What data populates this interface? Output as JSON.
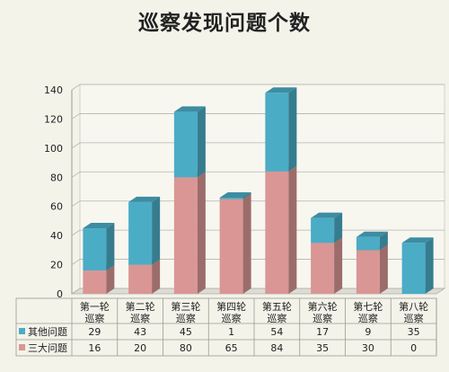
{
  "chart_data": {
    "type": "bar",
    "stacked": true,
    "title": "巡察发现问题个数",
    "categories": [
      "第一轮\n巡察",
      "第二轮\n巡察",
      "第三轮\n巡察",
      "第四轮\n巡察",
      "第五轮\n巡察",
      "第六轮\n巡察",
      "第七轮\n巡察",
      "第八轮\n巡察"
    ],
    "series": [
      {
        "name": "三大问题",
        "values": [
          16,
          20,
          80,
          65,
          84,
          35,
          30,
          0
        ],
        "color": "#d99694"
      },
      {
        "name": "其他问题",
        "values": [
          29,
          43,
          45,
          1,
          54,
          17,
          9,
          35
        ],
        "color": "#4bacc6"
      }
    ],
    "ylim": [
      0,
      140
    ],
    "yticks": [
      0,
      20,
      40,
      60,
      80,
      100,
      120,
      140
    ],
    "grid": true,
    "legend": "data-table",
    "data_table_rows": [
      "其他问题",
      "三大问题"
    ]
  }
}
